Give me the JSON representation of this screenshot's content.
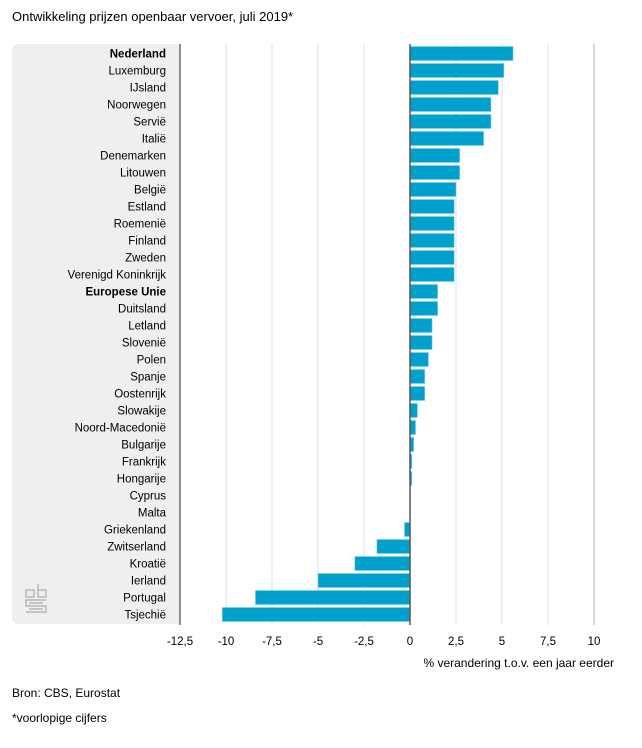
{
  "chart_data": {
    "type": "bar",
    "orientation": "horizontal",
    "title": "Ontwikkeling prijzen openbaar vervoer, juli 2019*",
    "xlabel": "% verandering t.o.v. een jaar eerder",
    "ylabel": "",
    "xlim": [
      -12.5,
      10
    ],
    "xticks": [
      -12.5,
      -10,
      -7.5,
      -5,
      -2.5,
      0,
      2.5,
      5,
      7.5,
      10
    ],
    "xtick_labels": [
      "-12,5",
      "-10",
      "-7,5",
      "-5",
      "-2,5",
      "0",
      "2,5",
      "5",
      "7,5",
      "10"
    ],
    "grid": true,
    "bar_color": "#00a1cd",
    "categories": [
      "Nederland",
      "Luxemburg",
      "IJsland",
      "Noorwegen",
      "Servië",
      "Italië",
      "Denemarken",
      "Litouwen",
      "België",
      "Estland",
      "Roemenië",
      "Finland",
      "Zweden",
      "Verenigd Koninkrijk",
      "Europese Unie",
      "Duitsland",
      "Letland",
      "Slovenië",
      "Polen",
      "Spanje",
      "Oostenrijk",
      "Slowakije",
      "Noord-Macedonië",
      "Bulgarije",
      "Frankrijk",
      "Hongarije",
      "Cyprus",
      "Malta",
      "Griekenland",
      "Zwitserland",
      "Kroatië",
      "Ierland",
      "Portugal",
      "Tsjechië"
    ],
    "bold_categories": [
      "Nederland",
      "Europese Unie"
    ],
    "values": [
      5.6,
      5.1,
      4.8,
      4.4,
      4.4,
      4.0,
      2.7,
      2.7,
      2.5,
      2.4,
      2.4,
      2.4,
      2.4,
      2.4,
      1.5,
      1.5,
      1.2,
      1.2,
      1.0,
      0.8,
      0.8,
      0.4,
      0.3,
      0.2,
      0.1,
      0.1,
      0.0,
      0.0,
      -0.3,
      -1.8,
      -3.0,
      -5.0,
      -8.4,
      -10.2
    ]
  },
  "footer": {
    "source": "Bron: CBS, Eurostat",
    "note": "*voorlopige cijfers"
  },
  "logo": {
    "icon": "cbs-logo-icon"
  }
}
